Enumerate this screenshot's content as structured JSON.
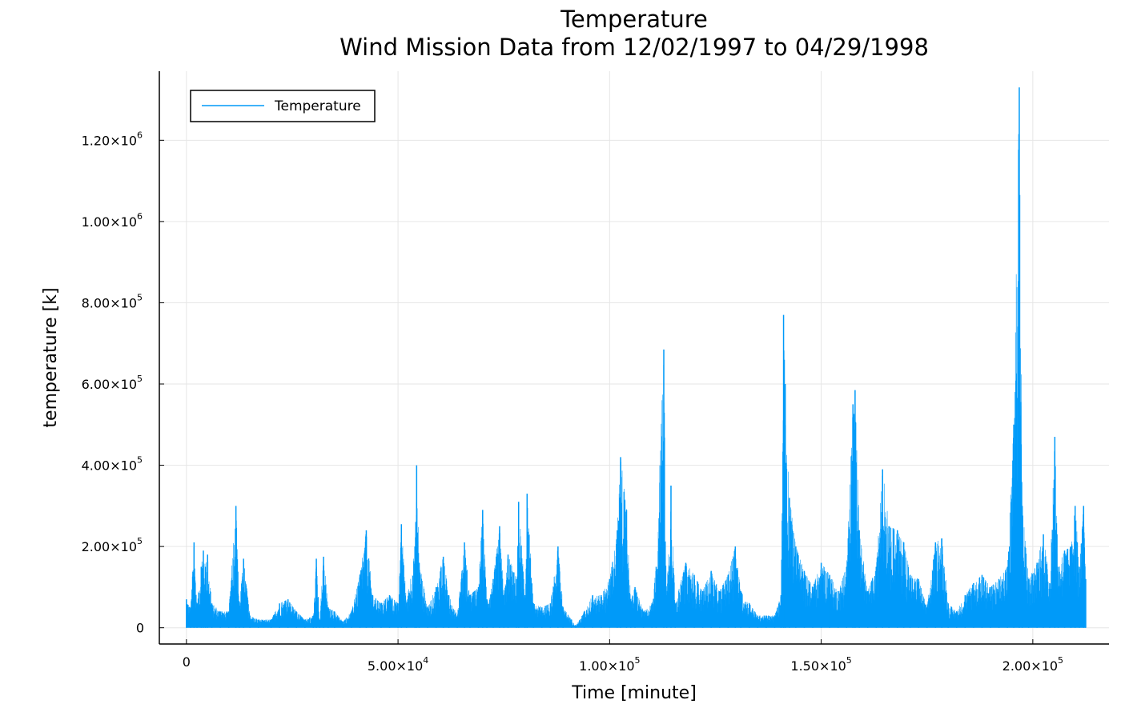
{
  "chart_data": {
    "type": "line",
    "title": "Temperature",
    "subtitle": "Wind Mission Data from 12/02/1997 to 04/29/1998",
    "xlabel": "Time [minute]",
    "ylabel": "temperature [k]",
    "xlim": [
      -6400,
      218000
    ],
    "ylim": [
      -40000,
      1370000
    ],
    "grid": true,
    "legend": "top-left",
    "color": "#009af9",
    "x_ticks": [
      {
        "value": 0,
        "mant": "0",
        "exp": ""
      },
      {
        "value": 50000,
        "mant": "5.00×10",
        "exp": "4"
      },
      {
        "value": 100000,
        "mant": "1.00×10",
        "exp": "5"
      },
      {
        "value": 150000,
        "mant": "1.50×10",
        "exp": "5"
      },
      {
        "value": 200000,
        "mant": "2.00×10",
        "exp": "5"
      }
    ],
    "y_ticks": [
      {
        "value": 0,
        "mant": "0",
        "exp": ""
      },
      {
        "value": 200000,
        "mant": "2.00×10",
        "exp": "5"
      },
      {
        "value": 400000,
        "mant": "4.00×10",
        "exp": "5"
      },
      {
        "value": 600000,
        "mant": "6.00×10",
        "exp": "5"
      },
      {
        "value": 800000,
        "mant": "8.00×10",
        "exp": "5"
      },
      {
        "value": 1000000,
        "mant": "1.00×10",
        "exp": "6"
      },
      {
        "value": 1200000,
        "mant": "1.20×10",
        "exp": "6"
      }
    ],
    "series": [
      {
        "name": "Temperature",
        "x_range": [
          0,
          212500
        ],
        "baseline": 0,
        "envelope": [
          [
            0,
            70000
          ],
          [
            1000,
            50000
          ],
          [
            1800,
            210000
          ],
          [
            2500,
            60000
          ],
          [
            3500,
            150000
          ],
          [
            4000,
            190000
          ],
          [
            4500,
            150000
          ],
          [
            5000,
            180000
          ],
          [
            6000,
            60000
          ],
          [
            8000,
            40000
          ],
          [
            10000,
            40000
          ],
          [
            11700,
            300000
          ],
          [
            12500,
            60000
          ],
          [
            13500,
            170000
          ],
          [
            15000,
            30000
          ],
          [
            17000,
            20000
          ],
          [
            20000,
            20000
          ],
          [
            22000,
            60000
          ],
          [
            24000,
            70000
          ],
          [
            26000,
            40000
          ],
          [
            28000,
            20000
          ],
          [
            30000,
            30000
          ],
          [
            30700,
            170000
          ],
          [
            31500,
            20000
          ],
          [
            32400,
            175000
          ],
          [
            33500,
            50000
          ],
          [
            35000,
            40000
          ],
          [
            37000,
            15000
          ],
          [
            39000,
            40000
          ],
          [
            41000,
            130000
          ],
          [
            42500,
            240000
          ],
          [
            44000,
            80000
          ],
          [
            46000,
            60000
          ],
          [
            48000,
            80000
          ],
          [
            50000,
            60000
          ],
          [
            50800,
            255000
          ],
          [
            52000,
            60000
          ],
          [
            54000,
            200000
          ],
          [
            54400,
            400000
          ],
          [
            55000,
            160000
          ],
          [
            57000,
            50000
          ],
          [
            59000,
            100000
          ],
          [
            60700,
            175000
          ],
          [
            62000,
            80000
          ],
          [
            64000,
            30000
          ],
          [
            65700,
            210000
          ],
          [
            67000,
            80000
          ],
          [
            69000,
            100000
          ],
          [
            70000,
            290000
          ],
          [
            71000,
            70000
          ],
          [
            72500,
            120000
          ],
          [
            74000,
            250000
          ],
          [
            75000,
            80000
          ],
          [
            76000,
            180000
          ],
          [
            78000,
            120000
          ],
          [
            78500,
            310000
          ],
          [
            80000,
            80000
          ],
          [
            80500,
            330000
          ],
          [
            82000,
            60000
          ],
          [
            84000,
            50000
          ],
          [
            86000,
            60000
          ],
          [
            87800,
            200000
          ],
          [
            89000,
            50000
          ],
          [
            91000,
            20000
          ],
          [
            92000,
            5000
          ],
          [
            94000,
            40000
          ],
          [
            96000,
            80000
          ],
          [
            98000,
            80000
          ],
          [
            100000,
            120000
          ],
          [
            101800,
            240000
          ],
          [
            102600,
            420000
          ],
          [
            104000,
            290000
          ],
          [
            105000,
            70000
          ],
          [
            106000,
            100000
          ],
          [
            108000,
            40000
          ],
          [
            110000,
            60000
          ],
          [
            111000,
            150000
          ],
          [
            112800,
            685000
          ],
          [
            113500,
            80000
          ],
          [
            114500,
            350000
          ],
          [
            115500,
            60000
          ],
          [
            118000,
            160000
          ],
          [
            120000,
            130000
          ],
          [
            122000,
            90000
          ],
          [
            124000,
            140000
          ],
          [
            126000,
            90000
          ],
          [
            128000,
            130000
          ],
          [
            129700,
            200000
          ],
          [
            131000,
            90000
          ],
          [
            133000,
            60000
          ],
          [
            135000,
            30000
          ],
          [
            137000,
            30000
          ],
          [
            139000,
            30000
          ],
          [
            140500,
            80000
          ],
          [
            141100,
            770000
          ],
          [
            141500,
            600000
          ],
          [
            142500,
            320000
          ],
          [
            144000,
            200000
          ],
          [
            146000,
            140000
          ],
          [
            148000,
            100000
          ],
          [
            150000,
            160000
          ],
          [
            152000,
            130000
          ],
          [
            154000,
            90000
          ],
          [
            156000,
            150000
          ],
          [
            157500,
            550000
          ],
          [
            158000,
            585000
          ],
          [
            159000,
            240000
          ],
          [
            161000,
            90000
          ],
          [
            163000,
            150000
          ],
          [
            164500,
            390000
          ],
          [
            166000,
            250000
          ],
          [
            168000,
            240000
          ],
          [
            169500,
            210000
          ],
          [
            171000,
            130000
          ],
          [
            173000,
            120000
          ],
          [
            175000,
            50000
          ],
          [
            177000,
            210000
          ],
          [
            178500,
            220000
          ],
          [
            180000,
            60000
          ],
          [
            182000,
            40000
          ],
          [
            184000,
            80000
          ],
          [
            186000,
            110000
          ],
          [
            188000,
            130000
          ],
          [
            190000,
            100000
          ],
          [
            192000,
            120000
          ],
          [
            194000,
            150000
          ],
          [
            195500,
            500000
          ],
          [
            196800,
            1330000
          ],
          [
            197500,
            300000
          ],
          [
            199000,
            120000
          ],
          [
            201000,
            160000
          ],
          [
            202500,
            230000
          ],
          [
            204000,
            110000
          ],
          [
            205200,
            470000
          ],
          [
            206000,
            150000
          ],
          [
            207500,
            190000
          ],
          [
            209000,
            200000
          ],
          [
            210000,
            300000
          ],
          [
            211000,
            150000
          ],
          [
            212000,
            300000
          ],
          [
            212500,
            120000
          ]
        ]
      }
    ]
  }
}
